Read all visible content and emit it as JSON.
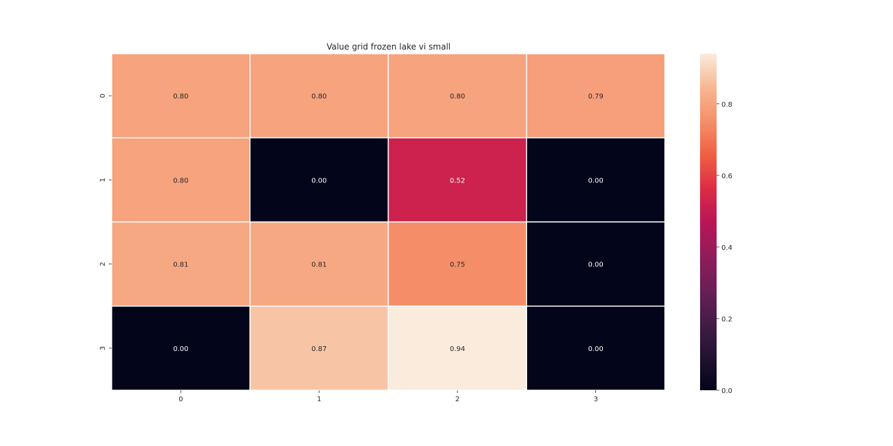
{
  "chart_data": {
    "type": "heatmap",
    "title": "Value grid frozen lake vi small",
    "xlabel": "",
    "ylabel": "",
    "x_ticks": [
      "0",
      "1",
      "2",
      "3"
    ],
    "y_ticks": [
      "0",
      "1",
      "2",
      "3"
    ],
    "values": [
      [
        0.8,
        0.8,
        0.8,
        0.79
      ],
      [
        0.8,
        0.0,
        0.52,
        0.0
      ],
      [
        0.81,
        0.81,
        0.75,
        0.0
      ],
      [
        0.0,
        0.87,
        0.94,
        0.0
      ]
    ],
    "annotations": [
      [
        "0.80",
        "0.80",
        "0.80",
        "0.79"
      ],
      [
        "0.80",
        "0.00",
        "0.52",
        "0.00"
      ],
      [
        "0.81",
        "0.81",
        "0.75",
        "0.00"
      ],
      [
        "0.00",
        "0.87",
        "0.94",
        "0.00"
      ]
    ],
    "colormap": "rocket",
    "vmin": 0.0,
    "vmax": 0.94,
    "colorbar_ticks": [
      "0.0",
      "0.2",
      "0.4",
      "0.6",
      "0.8"
    ],
    "colorbar_tick_values": [
      0.0,
      0.2,
      0.4,
      0.6,
      0.8
    ],
    "grid": false,
    "legend": "colorbar-right"
  }
}
